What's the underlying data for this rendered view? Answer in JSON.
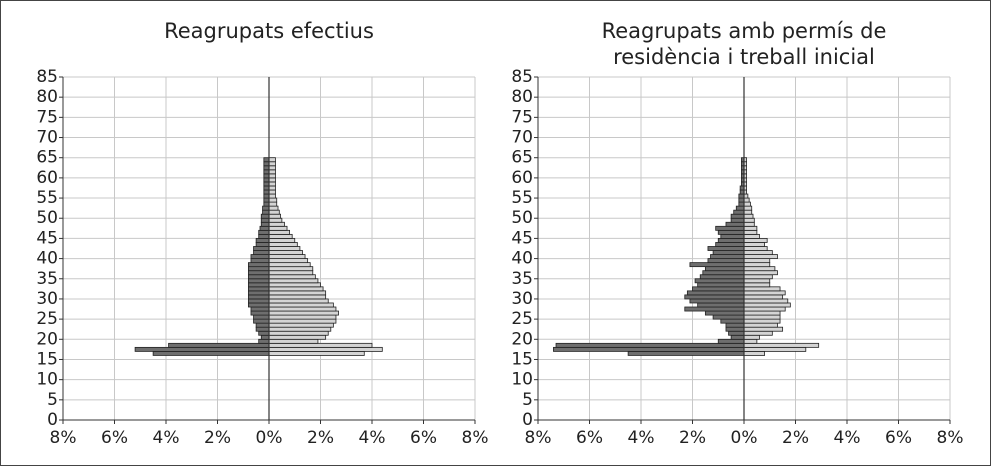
{
  "chart_data": [
    {
      "type": "pyramid",
      "title": [
        "Reagrupats efectius"
      ],
      "categories": [
        16,
        17,
        18,
        19,
        20,
        21,
        22,
        23,
        24,
        25,
        26,
        27,
        28,
        29,
        30,
        31,
        32,
        33,
        34,
        35,
        36,
        37,
        38,
        39,
        40,
        41,
        42,
        43,
        44,
        45,
        46,
        47,
        48,
        49,
        50,
        51,
        52,
        53,
        54,
        55,
        56,
        57,
        58,
        59,
        60,
        61,
        62,
        63,
        64
      ],
      "series": [
        {
          "color": "#6e6e6e",
          "values": [
            4.5,
            5.2,
            3.9,
            0.4,
            0.3,
            0.4,
            0.5,
            0.5,
            0.6,
            0.6,
            0.7,
            0.7,
            0.8,
            0.8,
            0.8,
            0.8,
            0.8,
            0.8,
            0.8,
            0.8,
            0.8,
            0.8,
            0.8,
            0.7,
            0.7,
            0.6,
            0.6,
            0.5,
            0.5,
            0.4,
            0.4,
            0.35,
            0.3,
            0.3,
            0.3,
            0.25,
            0.25,
            0.2,
            0.2,
            0.2,
            0.2,
            0.2,
            0.2,
            0.2,
            0.2,
            0.2,
            0.2,
            0.2,
            0.2
          ]
        },
        {
          "color": "#d4d4d4",
          "values": [
            3.7,
            4.4,
            4.0,
            1.9,
            2.2,
            2.3,
            2.4,
            2.5,
            2.6,
            2.6,
            2.7,
            2.6,
            2.5,
            2.3,
            2.2,
            2.2,
            2.1,
            2.0,
            1.9,
            1.8,
            1.7,
            1.7,
            1.6,
            1.5,
            1.4,
            1.3,
            1.2,
            1.1,
            1.0,
            0.9,
            0.8,
            0.7,
            0.6,
            0.5,
            0.45,
            0.4,
            0.35,
            0.3,
            0.3,
            0.25,
            0.25,
            0.25,
            0.25,
            0.25,
            0.25,
            0.25,
            0.25,
            0.25,
            0.25
          ]
        }
      ],
      "xlim": [
        -8,
        8
      ],
      "xticks": [
        {
          "value": -8,
          "label": "8%"
        },
        {
          "value": -6,
          "label": "6%"
        },
        {
          "value": -4,
          "label": "4%"
        },
        {
          "value": -2,
          "label": "2%"
        },
        {
          "value": 0,
          "label": "0%"
        },
        {
          "value": 2,
          "label": "2%"
        },
        {
          "value": 4,
          "label": "4%"
        },
        {
          "value": 6,
          "label": "6%"
        },
        {
          "value": 8,
          "label": "8%"
        }
      ],
      "ylim": [
        0,
        85
      ],
      "yticks": [
        0,
        5,
        10,
        15,
        20,
        25,
        30,
        35,
        40,
        45,
        50,
        55,
        60,
        65,
        70,
        75,
        80,
        85
      ],
      "grid": true
    },
    {
      "type": "pyramid",
      "title": [
        "Reagrupats amb permís de",
        "residència i treball inicial"
      ],
      "categories": [
        16,
        17,
        18,
        19,
        20,
        21,
        22,
        23,
        24,
        25,
        26,
        27,
        28,
        29,
        30,
        31,
        32,
        33,
        34,
        35,
        36,
        37,
        38,
        39,
        40,
        41,
        42,
        43,
        44,
        45,
        46,
        47,
        48,
        49,
        50,
        51,
        52,
        53,
        54,
        55,
        56,
        57,
        58,
        59,
        60,
        61,
        62,
        63,
        64
      ],
      "series": [
        {
          "color": "#6e6e6e",
          "values": [
            4.5,
            7.4,
            7.3,
            1.0,
            0.5,
            0.6,
            0.7,
            0.7,
            0.9,
            1.2,
            1.5,
            2.3,
            1.8,
            2.1,
            2.3,
            2.2,
            2.0,
            1.8,
            1.9,
            1.7,
            1.6,
            1.5,
            2.1,
            1.4,
            1.3,
            1.2,
            1.4,
            1.1,
            1.0,
            0.9,
            1.0,
            1.1,
            0.7,
            0.5,
            0.5,
            0.4,
            0.3,
            0.2,
            0.2,
            0.2,
            0.15,
            0.15,
            0.1,
            0.1,
            0.1,
            0.1,
            0.1,
            0.1,
            0.1
          ]
        },
        {
          "color": "#d4d4d4",
          "values": [
            0.8,
            2.4,
            2.9,
            0.5,
            0.6,
            1.1,
            1.5,
            1.3,
            1.4,
            1.4,
            1.4,
            1.6,
            1.8,
            1.7,
            1.5,
            1.6,
            1.4,
            1.0,
            1.0,
            1.1,
            1.3,
            1.2,
            1.0,
            1.0,
            1.3,
            1.1,
            0.9,
            0.8,
            0.9,
            0.6,
            0.5,
            0.5,
            0.4,
            0.4,
            0.35,
            0.3,
            0.3,
            0.25,
            0.2,
            0.15,
            0.1,
            0.1,
            0.1,
            0.1,
            0.1,
            0.1,
            0.1,
            0.1,
            0.1
          ]
        }
      ],
      "xlim": [
        -8,
        8
      ],
      "xticks": [
        {
          "value": -8,
          "label": "8%"
        },
        {
          "value": -6,
          "label": "6%"
        },
        {
          "value": -4,
          "label": "4%"
        },
        {
          "value": -2,
          "label": "2%"
        },
        {
          "value": 0,
          "label": "0%"
        },
        {
          "value": 2,
          "label": "2%"
        },
        {
          "value": 4,
          "label": "4%"
        },
        {
          "value": 6,
          "label": "6%"
        },
        {
          "value": 8,
          "label": "8%"
        }
      ],
      "ylim": [
        0,
        85
      ],
      "yticks": [
        0,
        5,
        10,
        15,
        20,
        25,
        30,
        35,
        40,
        45,
        50,
        55,
        60,
        65,
        70,
        75,
        80,
        85
      ],
      "grid": true
    }
  ]
}
